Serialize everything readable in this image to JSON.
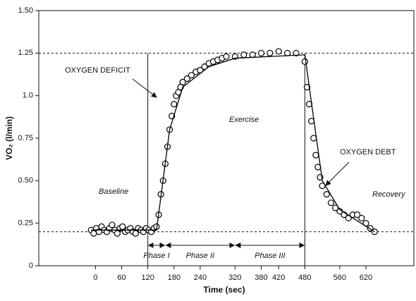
{
  "chart_data": {
    "type": "scatter",
    "x_label": "Time (sec)",
    "y_label": "VO₂ (l/min)",
    "xlim": [
      -130,
      730
    ],
    "ylim": [
      0,
      1.5
    ],
    "xticks": [
      0,
      60,
      120,
      180,
      240,
      320,
      380,
      420,
      480,
      560,
      620
    ],
    "yticks": [
      0,
      0.25,
      {
        "value": 0.5,
        "label": "0.50"
      },
      0.75,
      {
        "value": 1,
        "label": "1.0"
      },
      1.25,
      {
        "value": 1.5,
        "label": "1.50"
      }
    ],
    "reference_lines": [
      1.25,
      0.2
    ],
    "vertical_lines": [
      120,
      480
    ],
    "phases": [
      {
        "label": "Phase I",
        "start": 120,
        "end": 160
      },
      {
        "label": "Phase II",
        "start": 160,
        "end": 320
      },
      {
        "label": "Phase III",
        "start": 320,
        "end": 480
      }
    ],
    "annotations": [
      "OXYGEN DEFICIT",
      "Exercise",
      "OXYGEN DEBT",
      "Baseline",
      "Recovery"
    ],
    "series": [
      {
        "color": "#000000",
        "x": [
          -10,
          -4,
          2,
          8,
          14,
          20,
          26,
          32,
          38,
          44,
          50,
          56,
          62,
          68,
          74,
          80,
          86,
          92,
          98,
          104,
          110,
          116,
          122,
          128,
          134,
          140,
          145,
          150,
          155,
          160,
          165,
          170,
          175,
          180,
          185,
          190,
          195,
          200,
          210,
          220,
          230,
          240,
          250,
          260,
          270,
          280,
          290,
          300,
          320,
          340,
          360,
          380,
          400,
          420,
          440,
          460,
          480,
          485,
          490,
          495,
          500,
          505,
          510,
          515,
          520,
          530,
          540,
          550,
          560,
          570,
          580,
          590,
          600,
          610,
          620,
          630,
          640
        ],
        "values": [
          0.21,
          0.19,
          0.22,
          0.2,
          0.23,
          0.21,
          0.2,
          0.22,
          0.24,
          0.21,
          0.19,
          0.22,
          0.23,
          0.2,
          0.21,
          0.22,
          0.2,
          0.19,
          0.22,
          0.21,
          0.2,
          0.22,
          0.21,
          0.2,
          0.22,
          0.23,
          0.3,
          0.42,
          0.5,
          0.6,
          0.7,
          0.8,
          0.88,
          0.95,
          1.0,
          1.02,
          1.05,
          1.08,
          1.1,
          1.12,
          1.14,
          1.15,
          1.17,
          1.19,
          1.2,
          1.21,
          1.22,
          1.23,
          1.23,
          1.24,
          1.24,
          1.25,
          1.25,
          1.26,
          1.25,
          1.25,
          1.2,
          1.05,
          0.95,
          0.85,
          0.75,
          0.65,
          0.58,
          0.52,
          0.47,
          0.42,
          0.37,
          0.34,
          0.32,
          0.3,
          0.28,
          0.3,
          0.3,
          0.28,
          0.25,
          0.22,
          0.2
        ]
      },
      {
        "type": "line",
        "color": "#000000",
        "x": [
          -10,
          140,
          170,
          200,
          260,
          320,
          480,
          520,
          560,
          640
        ],
        "values": [
          0.21,
          0.21,
          0.8,
          1.05,
          1.17,
          1.22,
          1.24,
          0.5,
          0.33,
          0.2
        ]
      }
    ]
  }
}
